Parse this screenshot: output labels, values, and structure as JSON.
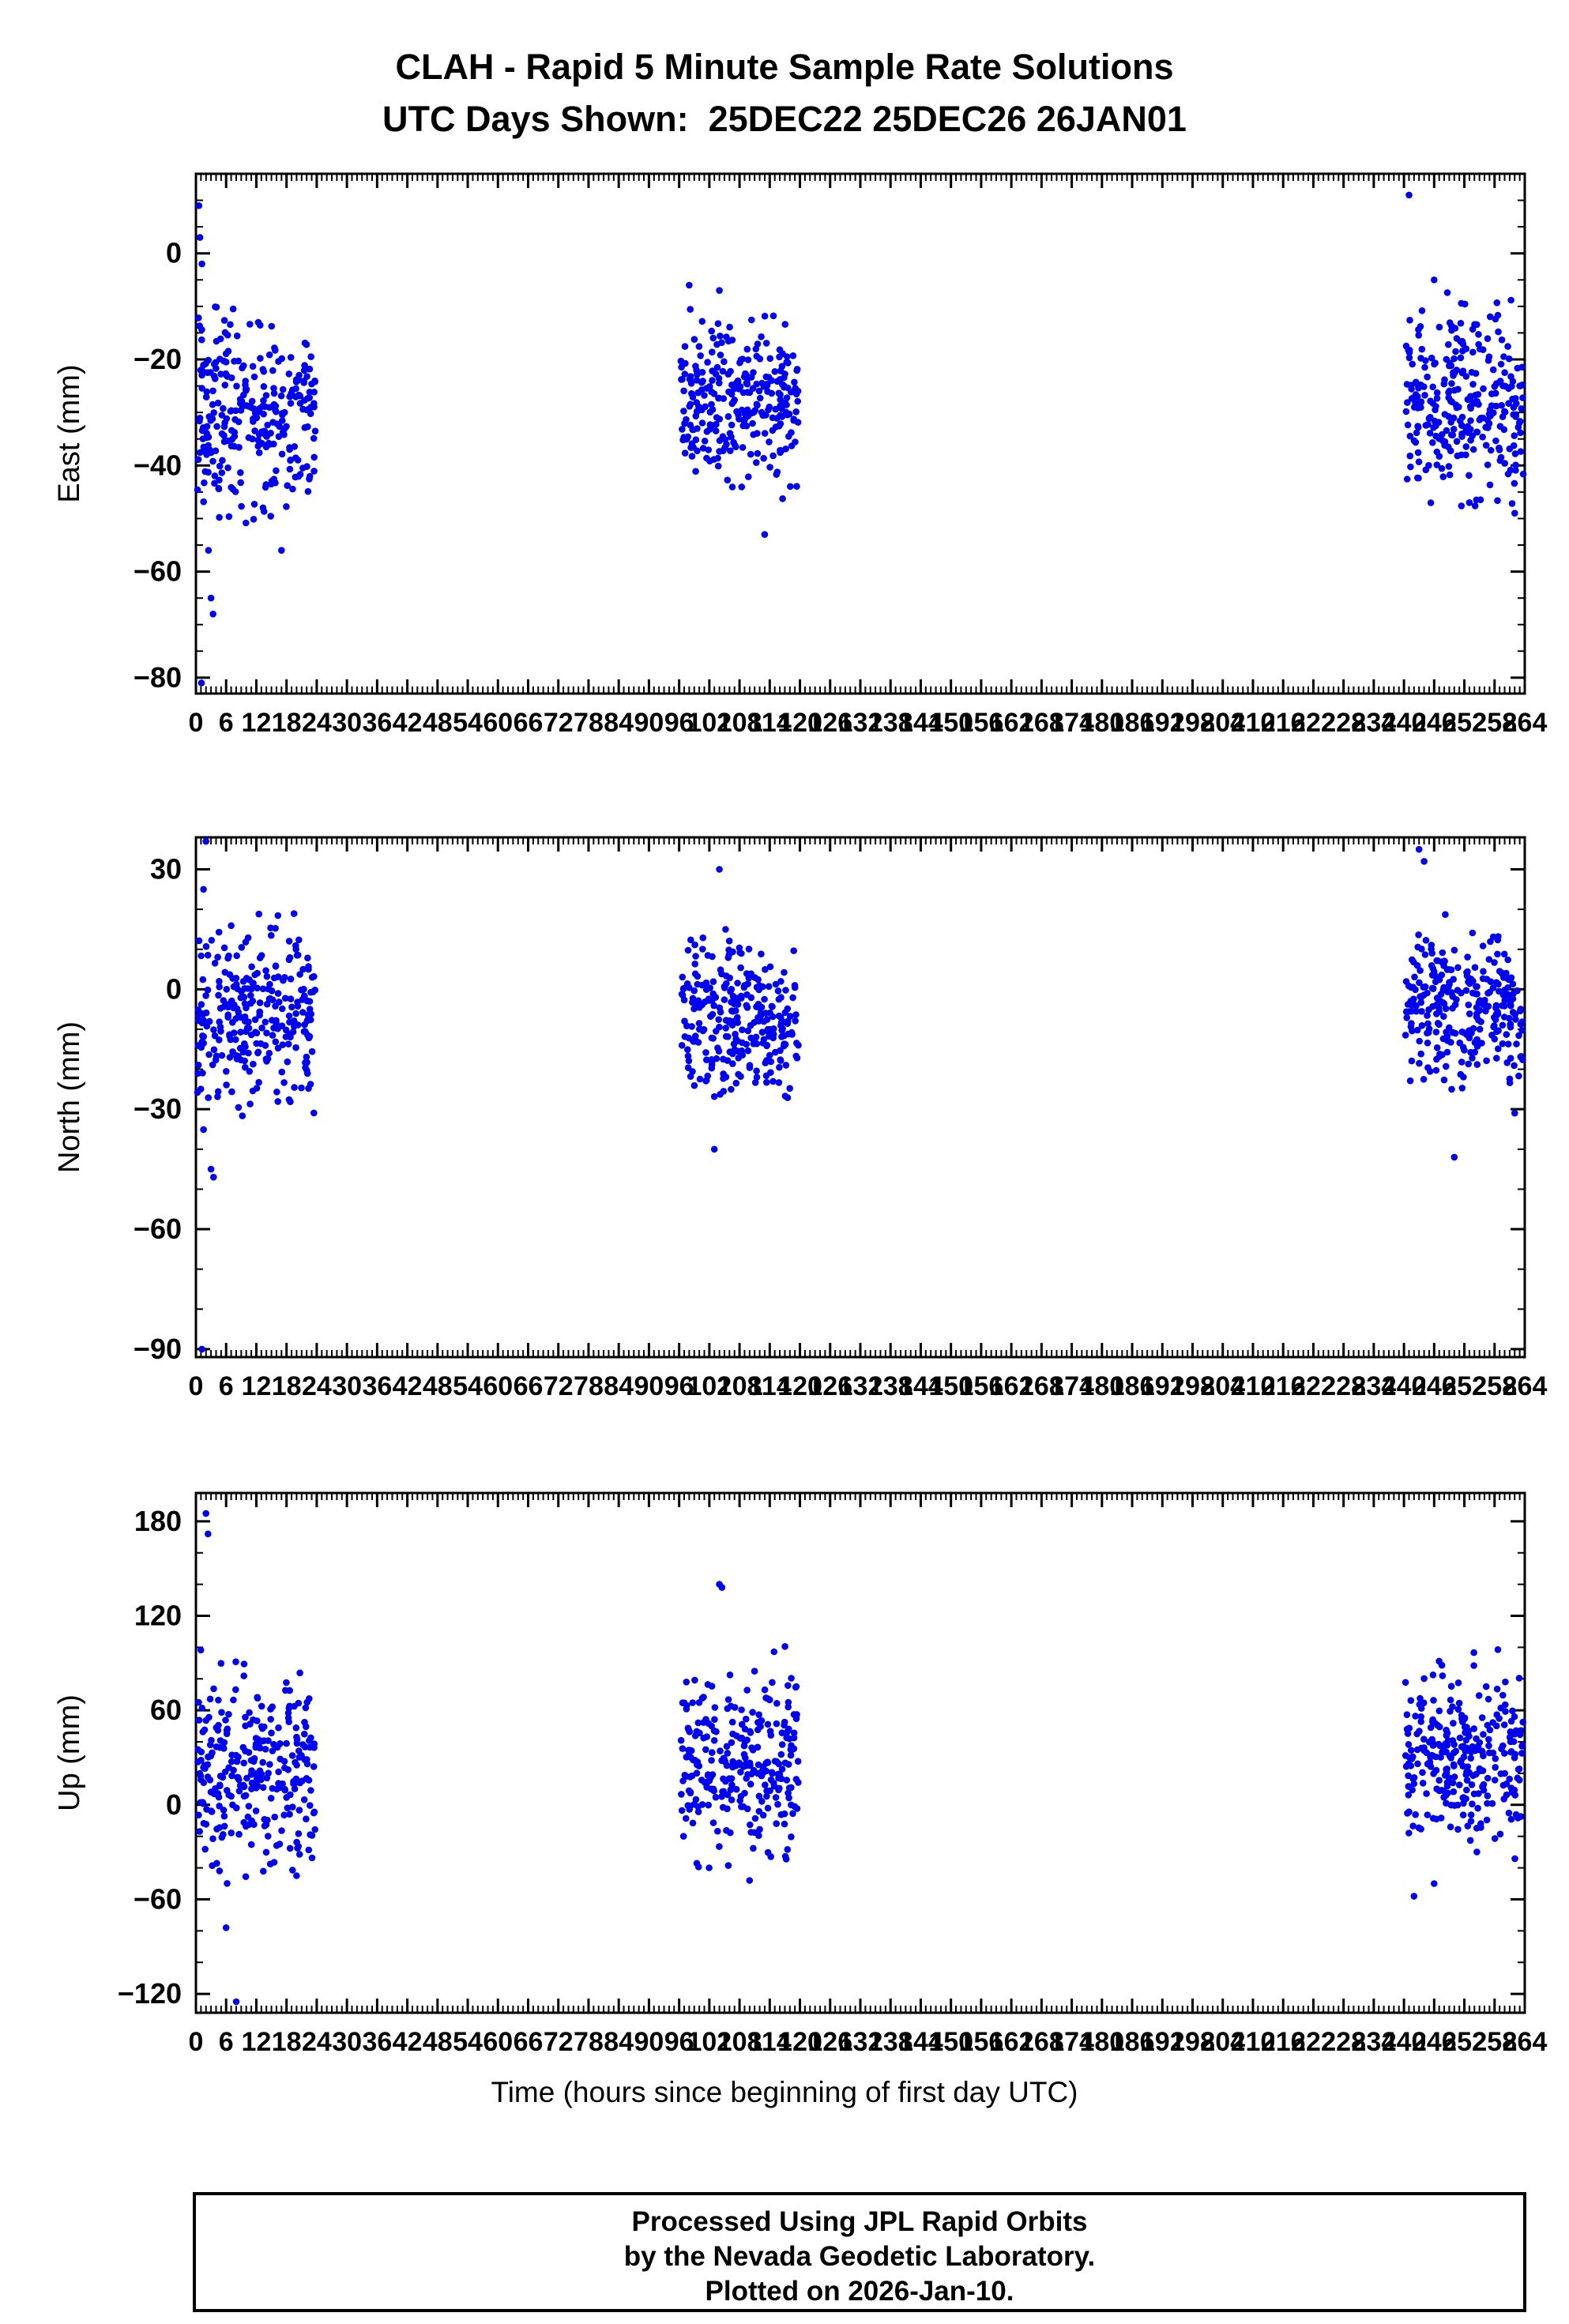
{
  "page": {
    "title_line1": "CLAH - Rapid 5 Minute Sample Rate Solutions",
    "title_line2": "UTC Days Shown:  25DEC22 25DEC26 26JAN01",
    "xlabel": "Time (hours since beginning of first day UTC)",
    "footer_lines": [
      "Processed Using JPL Rapid Orbits",
      "by the Nevada Geodetic Laboratory.",
      "Plotted on 2026-Jan-10."
    ]
  },
  "chart_data": {
    "type": "scatter",
    "title": "CLAH - Rapid 5 Minute Sample Rate Solutions",
    "subtitle": "UTC Days Shown:  25DEC22 25DEC26 26JAN01",
    "xlabel": "Time (hours since beginning of first day UTC)",
    "point_color": "#0000EE",
    "frame_color": "#000000",
    "x_range": [
      0,
      264
    ],
    "x_ticks": [
      0,
      6,
      12,
      18,
      24,
      30,
      36,
      42,
      48,
      54,
      60,
      66,
      72,
      78,
      84,
      90,
      96,
      102,
      108,
      114,
      120,
      126,
      132,
      138,
      144,
      150,
      156,
      162,
      168,
      174,
      180,
      186,
      192,
      198,
      204,
      210,
      216,
      222,
      228,
      234,
      240,
      246,
      252,
      258,
      264
    ],
    "x_minor_step": 1,
    "day_clusters_hours": [
      [
        0,
        24
      ],
      [
        96,
        120
      ],
      [
        240,
        264
      ]
    ],
    "days_shown": [
      "25DEC22",
      "25DEC26",
      "26JAN01"
    ],
    "subplots": [
      {
        "ylabel": "East (mm)",
        "ylim": [
          -83,
          15
        ],
        "y_ticks": [
          0,
          -20,
          -40,
          -60,
          -80
        ],
        "y_minor_step": 5,
        "seed": 1077,
        "clusters": [
          {
            "x_min": 0.3,
            "x_max": 23.7,
            "n": 280,
            "y_mean": -30,
            "y_std": 9
          },
          {
            "x_min": 96.3,
            "x_max": 119.7,
            "n": 280,
            "y_mean": -28,
            "y_std": 7.5
          },
          {
            "x_min": 240.3,
            "x_max": 263.7,
            "n": 280,
            "y_mean": -28,
            "y_std": 8.5
          }
        ],
        "outliers": [
          [
            0.6,
            9
          ],
          [
            0.8,
            3
          ],
          [
            1.2,
            -2
          ],
          [
            2.5,
            -56
          ],
          [
            3.0,
            -65
          ],
          [
            3.4,
            -68
          ],
          [
            1.1,
            -81
          ],
          [
            17,
            -56
          ],
          [
            98,
            -6
          ],
          [
            104,
            -7
          ],
          [
            113,
            -53
          ],
          [
            241,
            11
          ],
          [
            246,
            -5
          ],
          [
            253,
            -47
          ],
          [
            262,
            -49
          ]
        ]
      },
      {
        "ylabel": "North (mm)",
        "ylim": [
          -92,
          38
        ],
        "y_ticks": [
          30,
          0,
          -30,
          -60,
          -90
        ],
        "y_minor_step": 10,
        "seed": 2154,
        "clusters": [
          {
            "x_min": 0.3,
            "x_max": 23.7,
            "n": 280,
            "y_mean": -7,
            "y_std": 11
          },
          {
            "x_min": 96.3,
            "x_max": 119.7,
            "n": 280,
            "y_mean": -8,
            "y_std": 9
          },
          {
            "x_min": 240.3,
            "x_max": 263.7,
            "n": 280,
            "y_mean": -5,
            "y_std": 10
          }
        ],
        "outliers": [
          [
            2,
            37
          ],
          [
            1.5,
            25
          ],
          [
            3,
            -45
          ],
          [
            3.5,
            -47
          ],
          [
            1.2,
            -90
          ],
          [
            104,
            30
          ],
          [
            103,
            -40
          ],
          [
            243,
            35
          ],
          [
            244,
            32
          ],
          [
            250,
            -42
          ],
          [
            262,
            -31
          ]
        ]
      },
      {
        "ylabel": "Up (mm)",
        "ylim": [
          -132,
          198
        ],
        "y_ticks": [
          180,
          120,
          60,
          0,
          -60,
          -120
        ],
        "y_minor_step": 20,
        "seed": 3231,
        "clusters": [
          {
            "x_min": 0.3,
            "x_max": 23.7,
            "n": 280,
            "y_mean": 22,
            "y_std": 30
          },
          {
            "x_min": 96.3,
            "x_max": 119.7,
            "n": 280,
            "y_mean": 28,
            "y_std": 28
          },
          {
            "x_min": 240.3,
            "x_max": 263.7,
            "n": 280,
            "y_mean": 32,
            "y_std": 26
          }
        ],
        "outliers": [
          [
            2,
            185
          ],
          [
            2.4,
            172
          ],
          [
            6,
            -78
          ],
          [
            8,
            -125
          ],
          [
            20,
            -45
          ],
          [
            104,
            140
          ],
          [
            104.5,
            138
          ],
          [
            110,
            -48
          ],
          [
            242,
            -58
          ],
          [
            246,
            -50
          ]
        ]
      }
    ]
  }
}
